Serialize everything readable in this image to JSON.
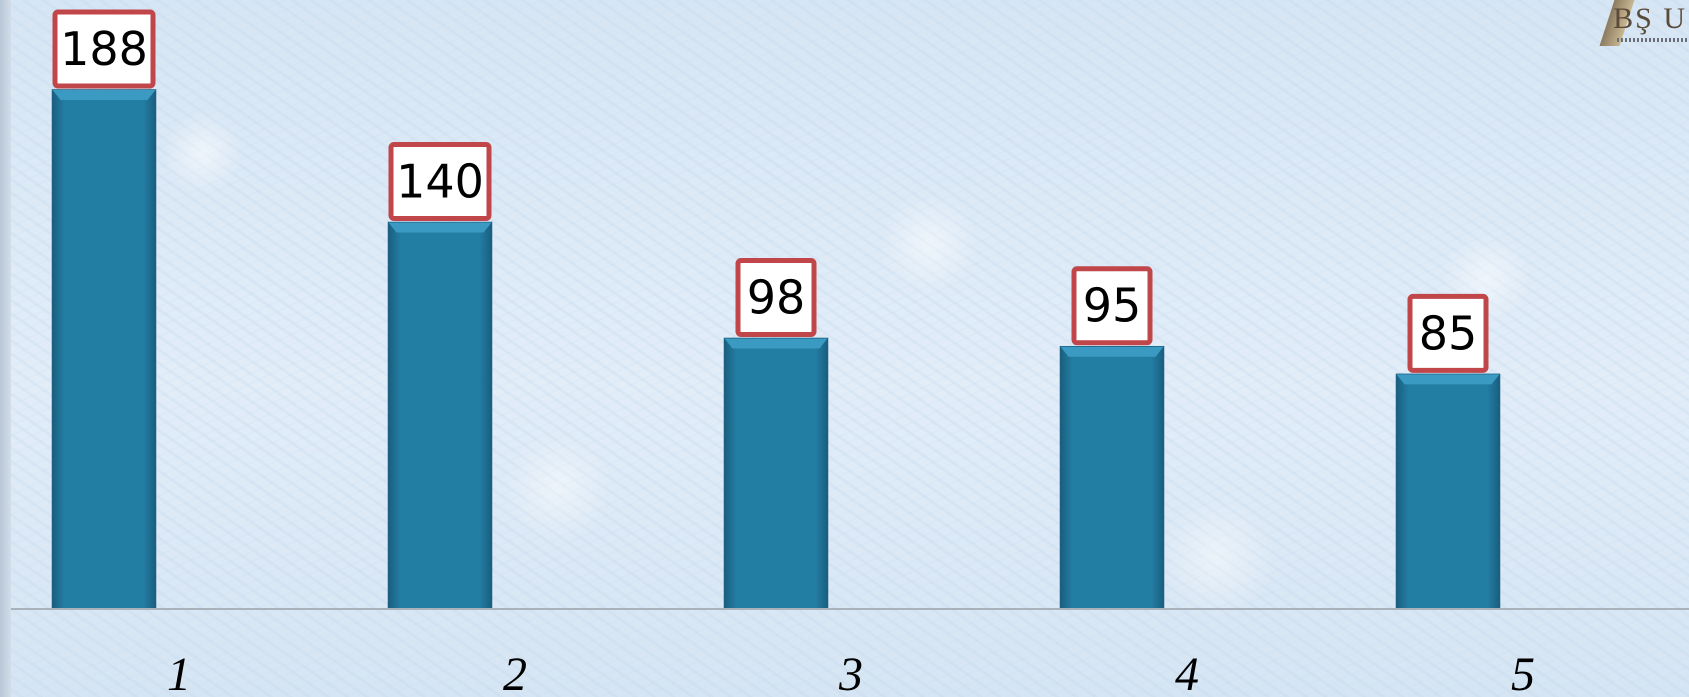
{
  "chart_data": {
    "type": "bar",
    "title": "",
    "xlabel": "",
    "ylabel": "",
    "categories": [
      "1",
      "2",
      "3",
      "4",
      "5"
    ],
    "values": [
      188,
      140,
      98,
      95,
      85
    ],
    "ylim": [
      0,
      188
    ],
    "grid": false,
    "data_labels": true,
    "colors": {
      "bar": "#237ea4",
      "bar_top": "#3a9ac2",
      "bar_edge": "#1a5f80",
      "label_border": "#c0464a",
      "label_fill": "#ffffff",
      "baseline": "#a9b2bb"
    }
  },
  "logo": {
    "text": "BŞ U",
    "icon": "scroll-logo-icon"
  }
}
